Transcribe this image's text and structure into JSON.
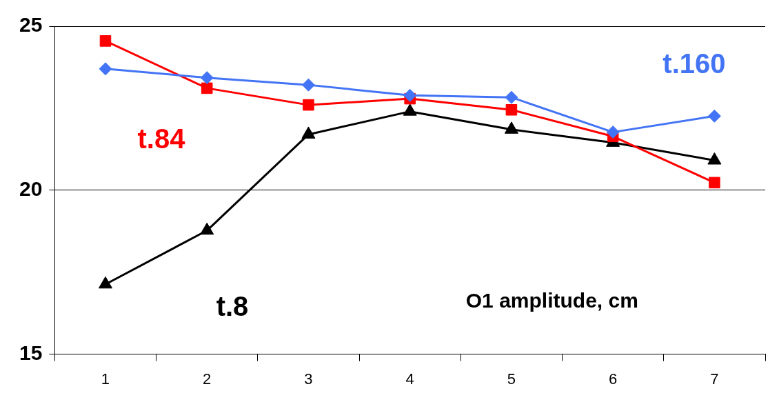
{
  "chart_data": {
    "type": "line",
    "categories": [
      "1",
      "2",
      "3",
      "4",
      "5",
      "6",
      "7"
    ],
    "series": [
      {
        "name": "t.160",
        "color": "#4374f5",
        "marker": "diamond",
        "values": [
          23.7,
          23.43,
          23.21,
          22.89,
          22.83,
          21.77,
          22.26
        ]
      },
      {
        "name": "t.84",
        "color": "#ff0000",
        "marker": "square",
        "values": [
          24.55,
          23.11,
          22.6,
          22.79,
          22.45,
          21.64,
          20.23
        ]
      },
      {
        "name": "t.8",
        "color": "#000000",
        "marker": "triangle",
        "values": [
          17.13,
          18.77,
          21.7,
          22.4,
          21.85,
          21.45,
          20.91
        ]
      }
    ],
    "ylim": [
      15,
      25
    ],
    "yticks": [
      15,
      20,
      25
    ],
    "grid": "y",
    "legend": false,
    "line_style": "solid",
    "annotations": [
      "O1 amplitude, cm"
    ]
  }
}
